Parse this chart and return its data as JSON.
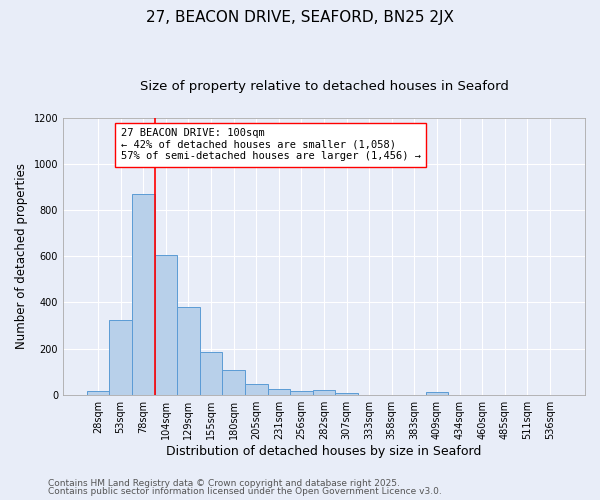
{
  "title": "27, BEACON DRIVE, SEAFORD, BN25 2JX",
  "subtitle": "Size of property relative to detached houses in Seaford",
  "xlabel": "Distribution of detached houses by size in Seaford",
  "ylabel": "Number of detached properties",
  "bar_labels": [
    "28sqm",
    "53sqm",
    "78sqm",
    "104sqm",
    "129sqm",
    "155sqm",
    "180sqm",
    "205sqm",
    "231sqm",
    "256sqm",
    "282sqm",
    "307sqm",
    "333sqm",
    "358sqm",
    "383sqm",
    "409sqm",
    "434sqm",
    "460sqm",
    "485sqm",
    "511sqm",
    "536sqm"
  ],
  "bar_values": [
    15,
    325,
    870,
    605,
    380,
    185,
    108,
    45,
    25,
    18,
    22,
    8,
    0,
    0,
    0,
    12,
    0,
    0,
    0,
    0,
    0
  ],
  "bar_color": "#b8d0ea",
  "bar_edge_color": "#5b9bd5",
  "vline_color": "red",
  "annotation_text": "27 BEACON DRIVE: 100sqm\n← 42% of detached houses are smaller (1,058)\n57% of semi-detached houses are larger (1,456) →",
  "annotation_box_color": "white",
  "annotation_box_edge_color": "red",
  "ylim": [
    0,
    1200
  ],
  "yticks": [
    0,
    200,
    400,
    600,
    800,
    1000,
    1200
  ],
  "background_color": "#e8edf8",
  "grid_color": "white",
  "footer1": "Contains HM Land Registry data © Crown copyright and database right 2025.",
  "footer2": "Contains public sector information licensed under the Open Government Licence v3.0.",
  "title_fontsize": 11,
  "subtitle_fontsize": 9.5,
  "xlabel_fontsize": 9,
  "ylabel_fontsize": 8.5,
  "tick_fontsize": 7,
  "footer_fontsize": 6.5,
  "annotation_fontsize": 7.5
}
